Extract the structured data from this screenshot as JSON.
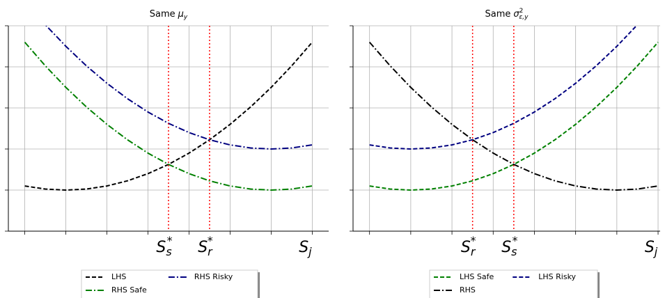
{
  "chart_data": [
    {
      "type": "line",
      "title": {
        "text": "Same",
        "symbol": "μ",
        "sub": "y"
      },
      "x": [
        0,
        0.5,
        1,
        1.5,
        2,
        2.5,
        3,
        3.5,
        4,
        4.5,
        5,
        5.5,
        6,
        6.5,
        7
      ],
      "series": [
        {
          "name": "LHS",
          "color": "#000000",
          "linestyle": "dashed",
          "values": [
            1.1,
            1.025,
            1,
            1.025,
            1.1,
            1.225,
            1.4,
            1.625,
            1.9,
            2.225,
            2.6,
            3.025,
            3.5,
            4.025,
            4.6
          ]
        },
        {
          "name": "RHS Safe",
          "color": "#008000",
          "linestyle": "dashdot",
          "values": [
            4.6,
            4.025,
            3.5,
            3.025,
            2.6,
            2.225,
            1.9,
            1.625,
            1.4,
            1.225,
            1.1,
            1.025,
            1,
            1.025,
            1.1
          ]
        },
        {
          "name": "RHS Risky",
          "color": "#000080",
          "linestyle": "dashdot",
          "values": [
            5.6,
            5.025,
            4.5,
            4.025,
            3.6,
            3.225,
            2.9,
            2.625,
            2.4,
            2.225,
            2.1,
            2.025,
            2,
            2.025,
            2.1
          ]
        }
      ],
      "x_labels": [
        {
          "value": 3.5,
          "base": "S",
          "sub": "s",
          "sup": "*",
          "vline": true
        },
        {
          "value": 4.5,
          "base": "S",
          "sub": "r",
          "sup": "*",
          "vline": true
        },
        {
          "value": 7,
          "base": "S",
          "sub": "j",
          "vline": false
        }
      ],
      "vline_color": "#ff0000",
      "xlim": [
        -0.4,
        7.4
      ],
      "ylim": [
        0,
        5
      ],
      "xticks": [
        0,
        1,
        2,
        3,
        4,
        5,
        6,
        7
      ],
      "yticks": [
        0,
        1,
        2,
        3,
        4,
        5
      ],
      "grid": true,
      "legend_loc": "below"
    },
    {
      "type": "line",
      "title": {
        "text": "Same",
        "symbol": "σ",
        "sup": "2",
        "sub": "ε,y"
      },
      "x": [
        0,
        0.5,
        1,
        1.5,
        2,
        2.5,
        3,
        3.5,
        4,
        4.5,
        5,
        5.5,
        6,
        6.5,
        7
      ],
      "series": [
        {
          "name": "LHS Safe",
          "color": "#008000",
          "linestyle": "dashed",
          "values": [
            1.1,
            1.025,
            1,
            1.025,
            1.1,
            1.225,
            1.4,
            1.625,
            1.9,
            2.225,
            2.6,
            3.025,
            3.5,
            4.025,
            4.6
          ]
        },
        {
          "name": "RHS",
          "color": "#000000",
          "linestyle": "dashdot",
          "values": [
            4.6,
            4.025,
            3.5,
            3.025,
            2.6,
            2.225,
            1.9,
            1.625,
            1.4,
            1.225,
            1.1,
            1.025,
            1,
            1.025,
            1.1
          ]
        },
        {
          "name": "LHS Risky",
          "color": "#000080",
          "linestyle": "dashed",
          "values": [
            2.1,
            2.025,
            2,
            2.025,
            2.1,
            2.225,
            2.4,
            2.625,
            2.9,
            3.225,
            3.6,
            4.025,
            4.5,
            5.025,
            5.6
          ]
        }
      ],
      "x_labels": [
        {
          "value": 2.5,
          "base": "S",
          "sub": "r",
          "sup": "*",
          "vline": true
        },
        {
          "value": 3.5,
          "base": "S",
          "sub": "s",
          "sup": "*",
          "vline": true
        },
        {
          "value": 7,
          "base": "S",
          "sub": "j",
          "vline": false
        }
      ],
      "vline_color": "#ff0000",
      "xlim": [
        -0.4,
        7.05
      ],
      "ylim": [
        0,
        5
      ],
      "xticks": [
        0,
        1,
        2,
        3,
        4,
        5,
        6,
        7
      ],
      "yticks": [
        0,
        1,
        2,
        3,
        4,
        5
      ],
      "grid": true,
      "legend_loc": "below"
    }
  ]
}
